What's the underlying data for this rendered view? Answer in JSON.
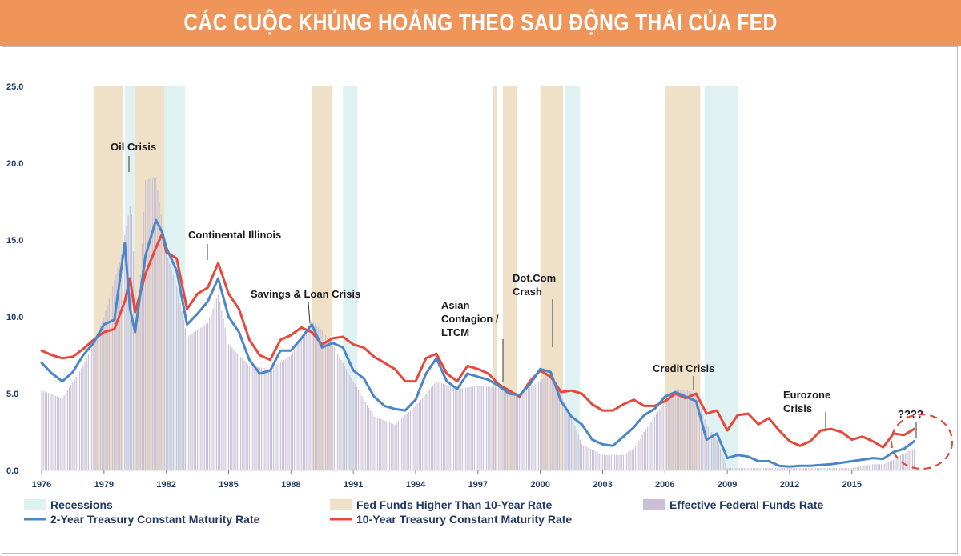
{
  "title": "CÁC CUỘC KHỦNG HOẢNG THEO SAU ĐỘNG THÁI CỦA FED",
  "colors": {
    "banner": "#f0955a",
    "recession": "#dff1f1",
    "fed_higher": "#efe1c8",
    "effective_ffr": "#c9c0d6",
    "two_year": "#4a86c8",
    "ten_year": "#e8473c",
    "axis_text": "#1f3864",
    "highlight_circle": "#e04b3a"
  },
  "chart_data": {
    "type": "line",
    "title": "",
    "xlabel": "",
    "ylabel": "",
    "xlim": [
      1976,
      2018.4
    ],
    "ylim": [
      0,
      25
    ],
    "x_ticks": [
      "1976",
      "1979",
      "1982",
      "1985",
      "1988",
      "1991",
      "1994",
      "1997",
      "2000",
      "2003",
      "2006",
      "2009",
      "2012",
      "2015"
    ],
    "y_ticks": [
      "0.0",
      "5.0",
      "10.0",
      "15.0",
      "20.0",
      "25.0"
    ],
    "grid": false,
    "legend_position": "bottom",
    "legend": [
      {
        "label": "Recessions",
        "kind": "recession"
      },
      {
        "label": "Fed Funds Higher Than 10-Year Rate",
        "kind": "fed_higher"
      },
      {
        "label": "Effective Federal Funds Rate",
        "kind": "effective_ffr"
      },
      {
        "label": "2-Year Treasury Constant Maturity Rate",
        "kind": "two_year"
      },
      {
        "label": "10-Year Treasury Constant Maturity Rate",
        "kind": "ten_year"
      }
    ],
    "recessions": [
      [
        1980.0,
        1980.5
      ],
      [
        1981.5,
        1982.9
      ],
      [
        1990.5,
        1991.2
      ],
      [
        2001.2,
        2001.9
      ],
      [
        2007.9,
        2009.5
      ]
    ],
    "fed_higher_periods": [
      [
        1978.5,
        1979.9
      ],
      [
        1980.5,
        1981.9
      ],
      [
        1989.0,
        1990.0
      ],
      [
        1997.7,
        1997.9
      ],
      [
        1998.2,
        1998.9
      ],
      [
        2000.0,
        2001.1
      ],
      [
        2006.0,
        2007.7
      ]
    ],
    "series": [
      {
        "name": "10-Year Treasury Constant Maturity Rate",
        "key": "ten_year",
        "x": [
          1976.0,
          1976.5,
          1977.0,
          1977.5,
          1978.0,
          1978.5,
          1979.0,
          1979.5,
          1980.0,
          1980.25,
          1980.5,
          1981.0,
          1981.5,
          1981.8,
          1982.0,
          1982.5,
          1983.0,
          1983.5,
          1984.0,
          1984.5,
          1985.0,
          1985.5,
          1986.0,
          1986.5,
          1987.0,
          1987.5,
          1988.0,
          1988.5,
          1989.0,
          1989.5,
          1990.0,
          1990.5,
          1991.0,
          1991.5,
          1992.0,
          1992.5,
          1993.0,
          1993.5,
          1994.0,
          1994.5,
          1995.0,
          1995.5,
          1996.0,
          1996.5,
          1997.0,
          1997.5,
          1998.0,
          1998.5,
          1999.0,
          1999.5,
          2000.0,
          2000.5,
          2001.0,
          2001.5,
          2002.0,
          2002.5,
          2003.0,
          2003.5,
          2004.0,
          2004.5,
          2005.0,
          2005.5,
          2006.0,
          2006.5,
          2007.0,
          2007.5,
          2008.0,
          2008.5,
          2009.0,
          2009.5,
          2010.0,
          2010.5,
          2011.0,
          2011.5,
          2012.0,
          2012.5,
          2013.0,
          2013.5,
          2014.0,
          2014.5,
          2015.0,
          2015.5,
          2016.0,
          2016.5,
          2017.0,
          2017.5,
          2018.0
        ],
        "values": [
          7.8,
          7.5,
          7.3,
          7.4,
          7.9,
          8.5,
          9.0,
          9.2,
          11.0,
          12.5,
          10.3,
          12.8,
          14.5,
          15.4,
          14.2,
          13.8,
          10.5,
          11.5,
          11.9,
          13.5,
          11.5,
          10.5,
          8.5,
          7.5,
          7.2,
          8.5,
          8.8,
          9.3,
          9.0,
          8.2,
          8.6,
          8.7,
          8.2,
          8.0,
          7.4,
          7.0,
          6.6,
          5.8,
          5.8,
          7.3,
          7.6,
          6.3,
          5.8,
          6.8,
          6.6,
          6.3,
          5.6,
          5.2,
          4.8,
          5.8,
          6.5,
          6.1,
          5.1,
          5.2,
          5.0,
          4.3,
          3.9,
          3.9,
          4.3,
          4.6,
          4.2,
          4.2,
          4.5,
          5.0,
          4.7,
          5.0,
          3.7,
          3.9,
          2.6,
          3.6,
          3.7,
          3.0,
          3.4,
          2.6,
          1.9,
          1.6,
          1.9,
          2.6,
          2.7,
          2.5,
          2.0,
          2.2,
          1.9,
          1.5,
          2.4,
          2.3,
          2.7
        ]
      },
      {
        "name": "2-Year Treasury Constant Maturity Rate",
        "key": "two_year",
        "x": [
          1976.0,
          1976.5,
          1977.0,
          1977.5,
          1978.0,
          1978.5,
          1979.0,
          1979.5,
          1980.0,
          1980.25,
          1980.5,
          1981.0,
          1981.5,
          1981.8,
          1982.0,
          1982.5,
          1983.0,
          1983.5,
          1984.0,
          1984.5,
          1985.0,
          1985.5,
          1986.0,
          1986.5,
          1987.0,
          1987.5,
          1988.0,
          1988.5,
          1989.0,
          1989.5,
          1990.0,
          1990.5,
          1991.0,
          1991.5,
          1992.0,
          1992.5,
          1993.0,
          1993.5,
          1994.0,
          1994.5,
          1995.0,
          1995.5,
          1996.0,
          1996.5,
          1997.0,
          1997.5,
          1998.0,
          1998.5,
          1999.0,
          1999.5,
          2000.0,
          2000.5,
          2001.0,
          2001.5,
          2002.0,
          2002.5,
          2003.0,
          2003.5,
          2004.0,
          2004.5,
          2005.0,
          2005.5,
          2006.0,
          2006.5,
          2007.0,
          2007.5,
          2008.0,
          2008.5,
          2009.0,
          2009.5,
          2010.0,
          2010.5,
          2011.0,
          2011.5,
          2012.0,
          2012.5,
          2013.0,
          2013.5,
          2014.0,
          2014.5,
          2015.0,
          2015.5,
          2016.0,
          2016.5,
          2017.0,
          2017.5,
          2018.0
        ],
        "values": [
          7.0,
          6.3,
          5.8,
          6.4,
          7.5,
          8.3,
          9.5,
          9.8,
          14.8,
          10.5,
          9.0,
          14.0,
          16.3,
          15.5,
          14.5,
          13.0,
          9.5,
          10.2,
          11.0,
          12.5,
          10.0,
          9.0,
          7.2,
          6.3,
          6.5,
          7.8,
          7.8,
          8.6,
          9.5,
          8.0,
          8.3,
          8.0,
          6.5,
          6.0,
          4.8,
          4.2,
          4.0,
          3.9,
          4.6,
          6.3,
          7.3,
          5.8,
          5.3,
          6.3,
          6.1,
          5.9,
          5.5,
          5.0,
          4.9,
          5.6,
          6.6,
          6.4,
          4.5,
          3.5,
          3.0,
          2.0,
          1.7,
          1.6,
          2.2,
          2.8,
          3.6,
          4.0,
          4.8,
          5.1,
          4.8,
          4.5,
          2.0,
          2.4,
          0.8,
          1.0,
          0.9,
          0.6,
          0.6,
          0.3,
          0.25,
          0.3,
          0.3,
          0.35,
          0.4,
          0.5,
          0.6,
          0.7,
          0.8,
          0.75,
          1.2,
          1.4,
          1.9
        ]
      },
      {
        "name": "Effective Federal Funds Rate",
        "key": "effective_ffr",
        "x": [
          1976.0,
          1977.0,
          1978.0,
          1979.0,
          1979.8,
          1980.3,
          1980.6,
          1981.0,
          1981.5,
          1982.0,
          1982.5,
          1983.0,
          1984.0,
          1984.5,
          1985.0,
          1986.0,
          1987.0,
          1988.0,
          1989.0,
          1989.5,
          1990.0,
          1991.0,
          1992.0,
          1993.0,
          1994.0,
          1995.0,
          1996.0,
          1997.0,
          1998.0,
          1999.0,
          2000.0,
          2000.5,
          2001.0,
          2001.5,
          2002.0,
          2003.0,
          2004.0,
          2004.5,
          2005.0,
          2006.0,
          2006.5,
          2007.0,
          2007.5,
          2008.0,
          2008.5,
          2009.0,
          2010.0,
          2012.0,
          2015.0,
          2016.0,
          2016.5,
          2017.0,
          2017.5,
          2018.0
        ],
        "values": [
          5.2,
          4.7,
          6.8,
          10.0,
          13.8,
          17.6,
          9.0,
          18.9,
          19.1,
          14.2,
          12.0,
          8.7,
          9.6,
          11.5,
          8.2,
          6.8,
          6.6,
          7.5,
          9.8,
          9.1,
          8.2,
          5.8,
          3.5,
          3.0,
          4.2,
          5.8,
          5.3,
          5.5,
          5.4,
          5.0,
          5.8,
          6.5,
          5.0,
          3.5,
          1.7,
          1.0,
          1.0,
          1.4,
          2.5,
          4.5,
          5.2,
          5.25,
          5.0,
          3.0,
          2.0,
          0.15,
          0.15,
          0.15,
          0.15,
          0.4,
          0.4,
          0.7,
          1.1,
          1.4
        ]
      }
    ],
    "annotations": [
      {
        "text": "Oil Crisis",
        "x": 1979.8,
        "y": 20.0,
        "lines": [
          "Oil Crisis"
        ]
      },
      {
        "text": "Continental Illinois",
        "x": 1984.0,
        "y": 14.2,
        "lines": [
          "Continental Illinois"
        ]
      },
      {
        "text": "Savings & Loan Crisis",
        "x": 1989.0,
        "y": 10.7,
        "lines": [
          "Savings & Loan Crisis"
        ]
      },
      {
        "text": "Asian Contagion / LTCM",
        "x": 1997.8,
        "y": 8.5,
        "lines": [
          "Asian",
          "Contagion /",
          "LTCM"
        ]
      },
      {
        "text": "Dot.Com Crash",
        "x": 2000.3,
        "y": 8.0,
        "lines": [
          "Dot.Com",
          "Crash"
        ]
      },
      {
        "text": "Credit Crisis",
        "x": 2007.3,
        "y": 6.5,
        "lines": [
          "Credit Crisis"
        ]
      },
      {
        "text": "Eurozone Crisis",
        "x": 2013.2,
        "y": 3.6,
        "lines": [
          "Eurozone",
          "Crisis"
        ]
      },
      {
        "text": "????",
        "x": 2017.7,
        "y": 3.2,
        "lines": [
          "????"
        ]
      }
    ]
  }
}
